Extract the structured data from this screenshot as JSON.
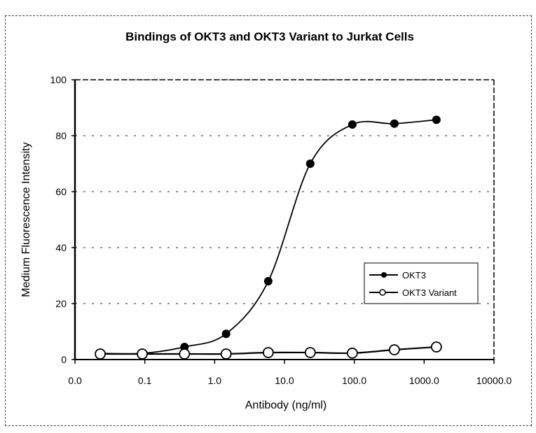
{
  "chart_data": {
    "type": "line",
    "title": "Bindings of OKT3 and OKT3 Variant to Jurkat Cells",
    "xlabel": "Antibody (ng/ml)",
    "ylabel": "Medium Fluorescence Intensity",
    "xscale": "log",
    "xlim": [
      0.01,
      10000
    ],
    "ylim": [
      0,
      100
    ],
    "xticks": [
      0.01,
      0.1,
      1,
      10,
      100,
      1000,
      10000
    ],
    "xtick_labels": [
      "0.0",
      "0.1",
      "1.0",
      "10.0",
      "100.0",
      "1000.0",
      "10000.0"
    ],
    "yticks": [
      0,
      20,
      40,
      60,
      80,
      100
    ],
    "ytick_labels": [
      "0",
      "20",
      "40",
      "60",
      "80",
      "100"
    ],
    "grid": "dashed horizontal",
    "legend_position": "right",
    "x": [
      0.023,
      0.092,
      0.37,
      1.46,
      5.86,
      23.4,
      93.75,
      375,
      1500
    ],
    "series": [
      {
        "name": "OKT3",
        "marker": "filled-circle",
        "values": [
          2.2,
          2.2,
          4.5,
          9.2,
          28,
          70,
          84,
          84.3,
          85.7
        ]
      },
      {
        "name": "OKT3 Variant",
        "marker": "open-circle",
        "values": [
          2,
          2,
          2,
          2,
          2.5,
          2.5,
          2.3,
          3.5,
          4.5
        ]
      }
    ]
  }
}
